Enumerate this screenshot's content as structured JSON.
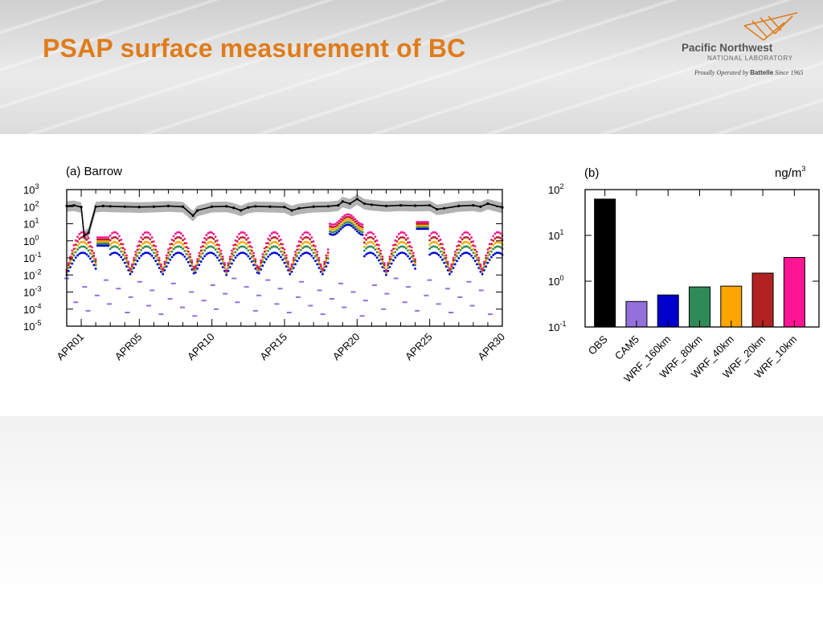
{
  "slide": {
    "title": "PSAP surface measurement of BC"
  },
  "logo": {
    "name": "Pacific Northwest",
    "sub": "NATIONAL LABORATORY",
    "tagline_pre": "Proudly Operated by",
    "tagline_brand": "Battelle",
    "tagline_post": "Since 1965",
    "accent_color": "#e07c1a"
  },
  "chart_data": [
    {
      "type": "scatter",
      "panel_title": "(a) Barrow",
      "xlabel": "",
      "ylabel": "",
      "yscale": "log",
      "ylim": [
        1e-05,
        1000.0
      ],
      "y_ticks": [
        {
          "base": "10",
          "exp": "3"
        },
        {
          "base": "10",
          "exp": "2"
        },
        {
          "base": "10",
          "exp": "1"
        },
        {
          "base": "10",
          "exp": "0"
        },
        {
          "base": "10",
          "exp": "-1"
        },
        {
          "base": "10",
          "exp": "-2"
        },
        {
          "base": "10",
          "exp": "-3"
        },
        {
          "base": "10",
          "exp": "-4"
        },
        {
          "base": "10",
          "exp": "-5"
        }
      ],
      "xlim": [
        0,
        30
      ],
      "x_ticks": [
        {
          "day": 1,
          "label": "APR01"
        },
        {
          "day": 5,
          "label": "APR05"
        },
        {
          "day": 10,
          "label": "APR10"
        },
        {
          "day": 15,
          "label": "APR15"
        },
        {
          "day": 20,
          "label": "APR20"
        },
        {
          "day": 25,
          "label": "APR25"
        },
        {
          "day": 30,
          "label": "APR30"
        }
      ],
      "obs_series": {
        "name": "OBS",
        "color": "#000000",
        "band_color": "#9a9a9a",
        "x": [
          0,
          0.5,
          1,
          1.2,
          1.5,
          2,
          2.5,
          3,
          4,
          5,
          6,
          7,
          8,
          8.7,
          9,
          10,
          11,
          11.5,
          12,
          12.5,
          13,
          14,
          15,
          15.5,
          16,
          17,
          18,
          18.7,
          19,
          19.5,
          20,
          20.5,
          21,
          22,
          23,
          24,
          25,
          25.5,
          26,
          27,
          28,
          28.5,
          29,
          30
        ],
        "y": [
          110,
          120,
          95,
          2,
          3,
          100,
          110,
          105,
          100,
          95,
          100,
          110,
          100,
          30,
          60,
          100,
          105,
          85,
          60,
          90,
          105,
          100,
          95,
          60,
          80,
          100,
          105,
          120,
          200,
          150,
          280,
          150,
          130,
          110,
          120,
          115,
          120,
          70,
          80,
          110,
          120,
          100,
          150,
          90
        ]
      },
      "model_series": [
        {
          "name": "CAM5",
          "color": "#9370db",
          "y_typical": 0.001
        },
        {
          "name": "WRF_160km",
          "color": "#0000cd",
          "y_typical": 0.1
        },
        {
          "name": "WRF_80km",
          "color": "#2e8b57",
          "y_typical": 0.3
        },
        {
          "name": "WRF_40km",
          "color": "#ffa500",
          "y_typical": 0.4
        },
        {
          "name": "WRF_20km",
          "color": "#b22222",
          "y_typical": 0.6
        },
        {
          "name": "WRF_10km",
          "color": "#ff1493",
          "y_typical": 1.0
        }
      ]
    },
    {
      "type": "bar",
      "panel_title": "(b)",
      "unit_label": {
        "base": "ng/m",
        "exp": "3"
      },
      "yscale": "log",
      "ylim": [
        0.1,
        100
      ],
      "y_ticks": [
        {
          "base": "10",
          "exp": "2"
        },
        {
          "base": "10",
          "exp": "1"
        },
        {
          "base": "10",
          "exp": "0"
        },
        {
          "base": "10",
          "exp": "-1"
        }
      ],
      "categories": [
        "OBS",
        "CAM5",
        "WRF_160km",
        "WRF_80km",
        "WRF_40km",
        "WRF_20km",
        "WRF_10km"
      ],
      "values": [
        62,
        0.36,
        0.5,
        0.75,
        0.78,
        1.5,
        3.3
      ],
      "colors": [
        "#000000",
        "#9370db",
        "#0000cd",
        "#2e8b57",
        "#ffa500",
        "#b22222",
        "#ff1493"
      ]
    }
  ]
}
